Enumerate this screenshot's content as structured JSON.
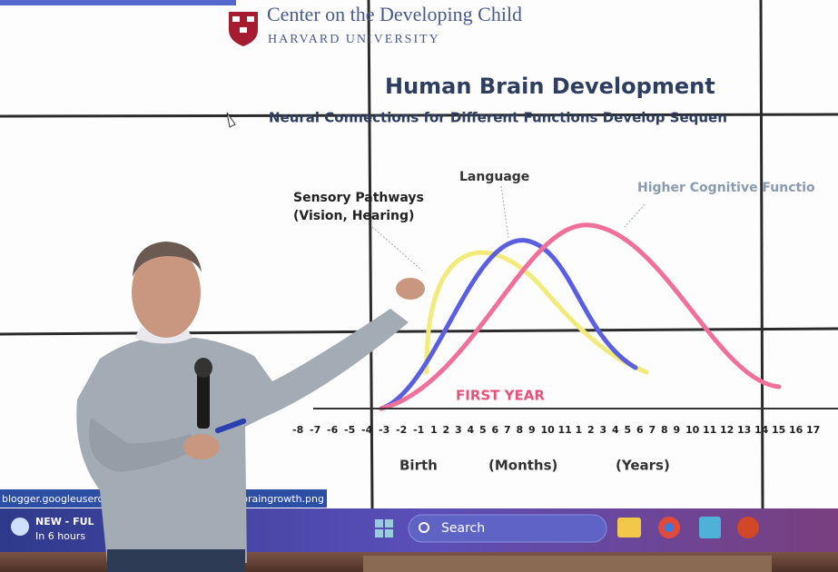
{
  "slide": {
    "logo_name": "Center on the Developing Child",
    "logo_sub": "HARVARD UNIVERSITY",
    "title": "Human Brain Development",
    "subtitle": "Neural Connections for Different Functions Develop Sequen",
    "labels": {
      "sensory_line1": "Sensory Pathways",
      "sensory_line2": "(Vision, Hearing)",
      "language": "Language",
      "higher": "Higher Cognitive Functio",
      "first_year": "FIRST YEAR"
    },
    "axis_ticks": [
      "-8",
      "-7",
      "-6",
      "-5",
      "-4",
      "-3",
      "-2",
      "-1",
      "1",
      "2",
      "3",
      "4",
      "5",
      "6",
      "7",
      "8",
      "9",
      "10",
      "11",
      "1",
      "2",
      "3",
      "4",
      "5",
      "6",
      "7",
      "8",
      "9",
      "10",
      "11",
      "12",
      "13",
      "14",
      "15",
      "16",
      "17"
    ],
    "axis_captions": {
      "birth": "Birth",
      "months": "(Months)",
      "years": "(Years)"
    }
  },
  "browser": {
    "url_left": "blogger.googleusercon",
    "url_right": "braingrowth.png"
  },
  "taskbar": {
    "weather_title": "NEW - FUL",
    "weather_time": "In 6 hours",
    "search": "Search"
  }
}
